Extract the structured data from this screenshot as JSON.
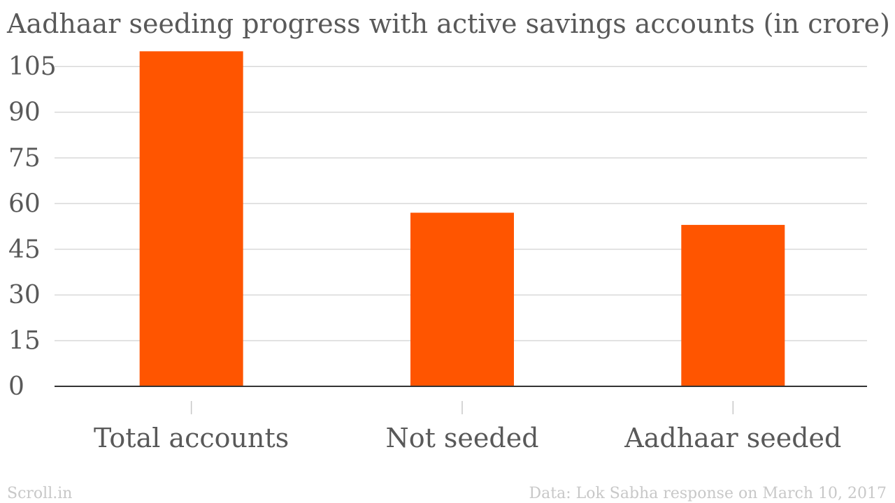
{
  "chart_data": {
    "type": "bar",
    "title": "Aadhaar seeding progress with active savings accounts (in crore)",
    "categories": [
      "Total accounts",
      "Not seeded",
      "Aadhaar seeded"
    ],
    "values": [
      110,
      57,
      53
    ],
    "ylim": [
      0,
      110
    ],
    "yticks": [
      0,
      15,
      30,
      45,
      60,
      75,
      90,
      105
    ],
    "xlabel": "",
    "ylabel": "",
    "grid": true,
    "bar_color": "#FF5500"
  },
  "footer": {
    "brand": "Scroll.in",
    "source": "Data: Lok Sabha response on March 10, 2017"
  }
}
